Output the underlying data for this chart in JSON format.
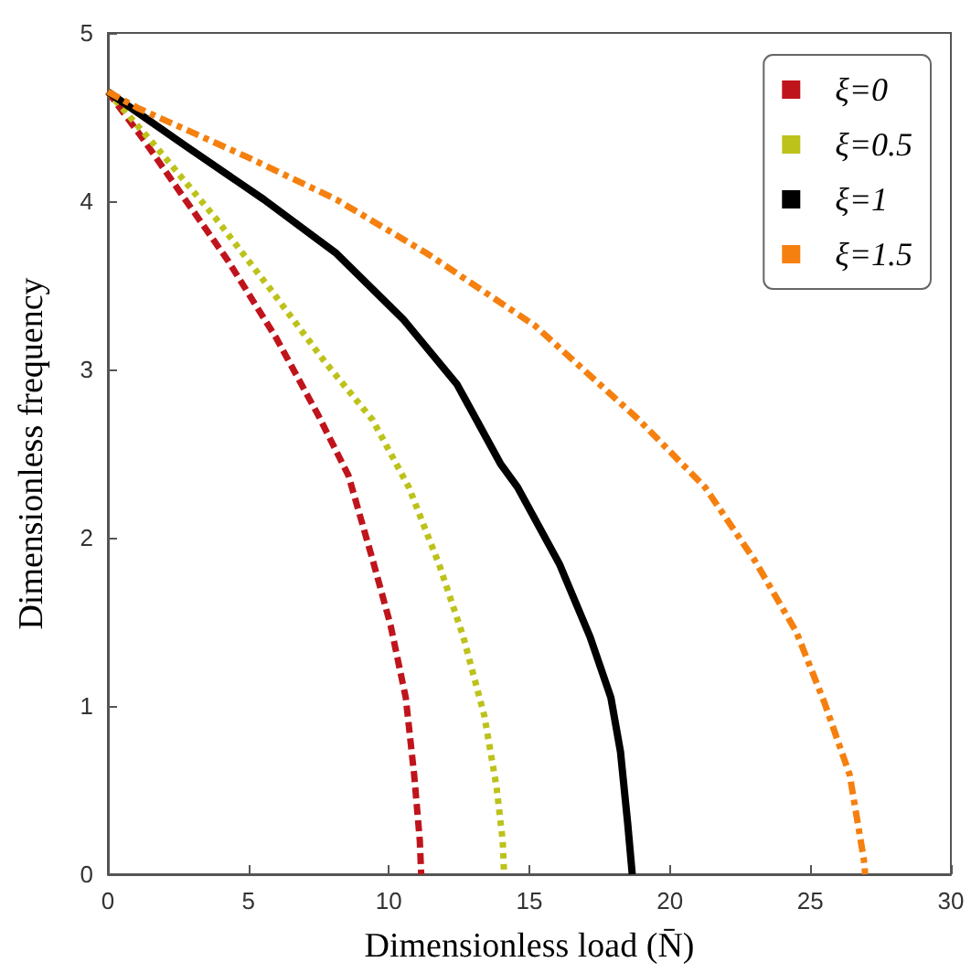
{
  "chart_data": {
    "type": "line",
    "xlabel": "Dimensionless load (N̄)",
    "ylabel": "Dimensionless frequency",
    "xlim": [
      0,
      30
    ],
    "xticks": [
      0,
      5,
      10,
      15,
      20,
      25,
      30
    ],
    "ylim": [
      0,
      5
    ],
    "yticks": [
      0,
      1,
      2,
      3,
      4,
      5
    ],
    "grid": false,
    "legend": "top right",
    "marker": "none",
    "series": [
      {
        "name": "ξ=0",
        "color": "#c0141c",
        "line_style": "dashed",
        "x": [
          0,
          1.25,
          2.75,
          4.26,
          5.98,
          7.48,
          8.56,
          9.42,
          10.06,
          10.6,
          10.9,
          11.1,
          11.15
        ],
        "values": [
          4.65,
          4.37,
          4.01,
          3.65,
          3.19,
          2.73,
          2.37,
          1.87,
          1.48,
          1.05,
          0.59,
          0.2,
          0
        ]
      },
      {
        "name": "ξ=0.5",
        "color": "#bcc21a",
        "line_style": "dotted",
        "x": [
          0,
          1.68,
          3.83,
          5.77,
          7.7,
          9.42,
          10.71,
          11.79,
          12.65,
          13.4,
          13.83,
          14.05,
          14.1
        ],
        "values": [
          4.65,
          4.33,
          3.9,
          3.48,
          3.05,
          2.7,
          2.3,
          1.84,
          1.41,
          0.94,
          0.52,
          0.2,
          0
        ]
      },
      {
        "name": "ξ=1",
        "color": "#000000",
        "line_style": "solid",
        "x": [
          0,
          2.75,
          5.55,
          8.13,
          10.5,
          12.43,
          13.97,
          14.58,
          16.08,
          17.16,
          17.9,
          18.24,
          18.5,
          18.66
        ],
        "values": [
          4.65,
          4.33,
          4.01,
          3.69,
          3.3,
          2.91,
          2.44,
          2.3,
          1.84,
          1.41,
          1.05,
          0.73,
          0.3,
          0
        ]
      },
      {
        "name": "ξ=1.5",
        "color": "#f5800f",
        "line_style": "dashdot",
        "x": [
          0,
          1.11,
          4.99,
          8.13,
          11.35,
          15.2,
          18.9,
          21.25,
          23.0,
          24.5,
          25.5,
          26.4,
          26.9,
          26.95
        ],
        "values": [
          4.65,
          4.55,
          4.26,
          4.01,
          3.69,
          3.26,
          2.7,
          2.3,
          1.87,
          1.44,
          1.02,
          0.59,
          0.09,
          0
        ]
      }
    ]
  }
}
